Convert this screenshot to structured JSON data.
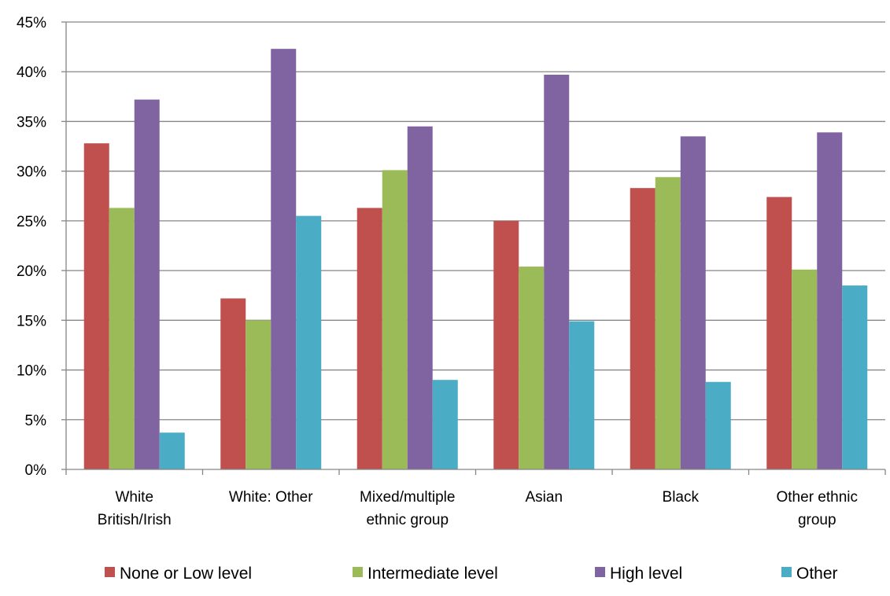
{
  "chart_data": {
    "type": "bar",
    "title": "",
    "xlabel": "",
    "ylabel": "",
    "categories": [
      [
        "White",
        "British/Irish"
      ],
      [
        "White: Other"
      ],
      [
        "Mixed/multiple",
        "ethnic group"
      ],
      [
        "Asian"
      ],
      [
        "Black"
      ],
      [
        "Other ethnic",
        "group"
      ]
    ],
    "series": [
      {
        "name": "None or Low level",
        "color": "#c0504d",
        "values": [
          32.8,
          17.2,
          26.3,
          25.0,
          28.3,
          27.4
        ]
      },
      {
        "name": "Intermediate level",
        "color": "#9bbb59",
        "values": [
          26.3,
          15.0,
          30.1,
          20.4,
          29.4,
          20.1
        ]
      },
      {
        "name": "High level",
        "color": "#8064a2",
        "values": [
          37.2,
          42.3,
          34.5,
          39.7,
          33.5,
          33.9
        ]
      },
      {
        "name": "Other",
        "color": "#4bacc6",
        "values": [
          3.7,
          25.5,
          9.0,
          14.9,
          8.8,
          18.5
        ]
      }
    ],
    "ylim": [
      0,
      45
    ],
    "yticks": [
      "0%",
      "5%",
      "10%",
      "15%",
      "20%",
      "25%",
      "30%",
      "35%",
      "40%",
      "45%"
    ],
    "grid": true,
    "legend_position": "bottom"
  }
}
